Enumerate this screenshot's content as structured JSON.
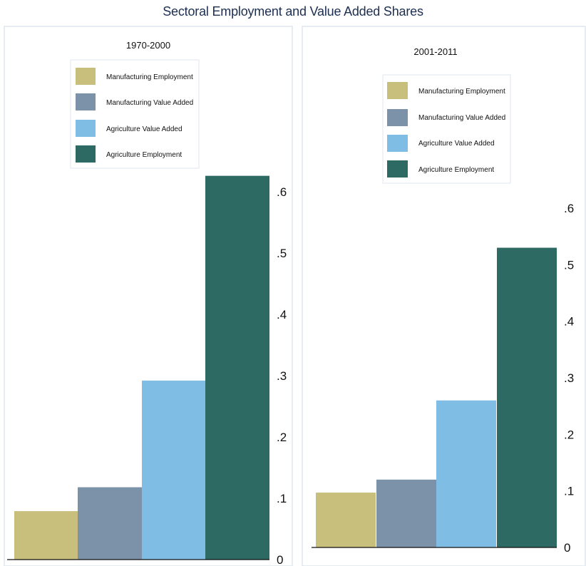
{
  "title": "Sectoral Employment and Value Added Shares",
  "chart_data": [
    {
      "type": "bar",
      "title": "1970-2000",
      "categories": [
        "Manufacturing Employment",
        "Manufacturing Value Added",
        "Agriculture Value Added",
        "Agriculture Employment"
      ],
      "values": [
        0.079,
        0.118,
        0.292,
        0.626
      ],
      "ylim": [
        0,
        0.63
      ],
      "yticks": [
        0,
        0.1,
        0.2,
        0.3,
        0.4,
        0.5,
        0.6
      ],
      "ytick_labels": [
        "0",
        ".1",
        ".2",
        ".3",
        ".4",
        ".5",
        ".6"
      ],
      "y_axis_side": "right",
      "grid": false,
      "legend_position": "top-center",
      "colors": [
        "#c9bf7c",
        "#7b92a9",
        "#80bde5",
        "#2c6a63"
      ]
    },
    {
      "type": "bar",
      "title": "2001-2011",
      "categories": [
        "Manufacturing Employment",
        "Manufacturing Value Added",
        "Agriculture Value Added",
        "Agriculture Employment"
      ],
      "values": [
        0.097,
        0.12,
        0.26,
        0.53
      ],
      "ylim": [
        0,
        0.63
      ],
      "yticks": [
        0,
        0.1,
        0.2,
        0.3,
        0.4,
        0.5,
        0.6
      ],
      "ytick_labels": [
        "0",
        ".1",
        ".2",
        ".3",
        ".4",
        ".5",
        ".6"
      ],
      "y_axis_side": "right",
      "grid": false,
      "legend_position": "top-center",
      "colors": [
        "#c9bf7c",
        "#7b92a9",
        "#80bde5",
        "#2c6a63"
      ]
    }
  ]
}
